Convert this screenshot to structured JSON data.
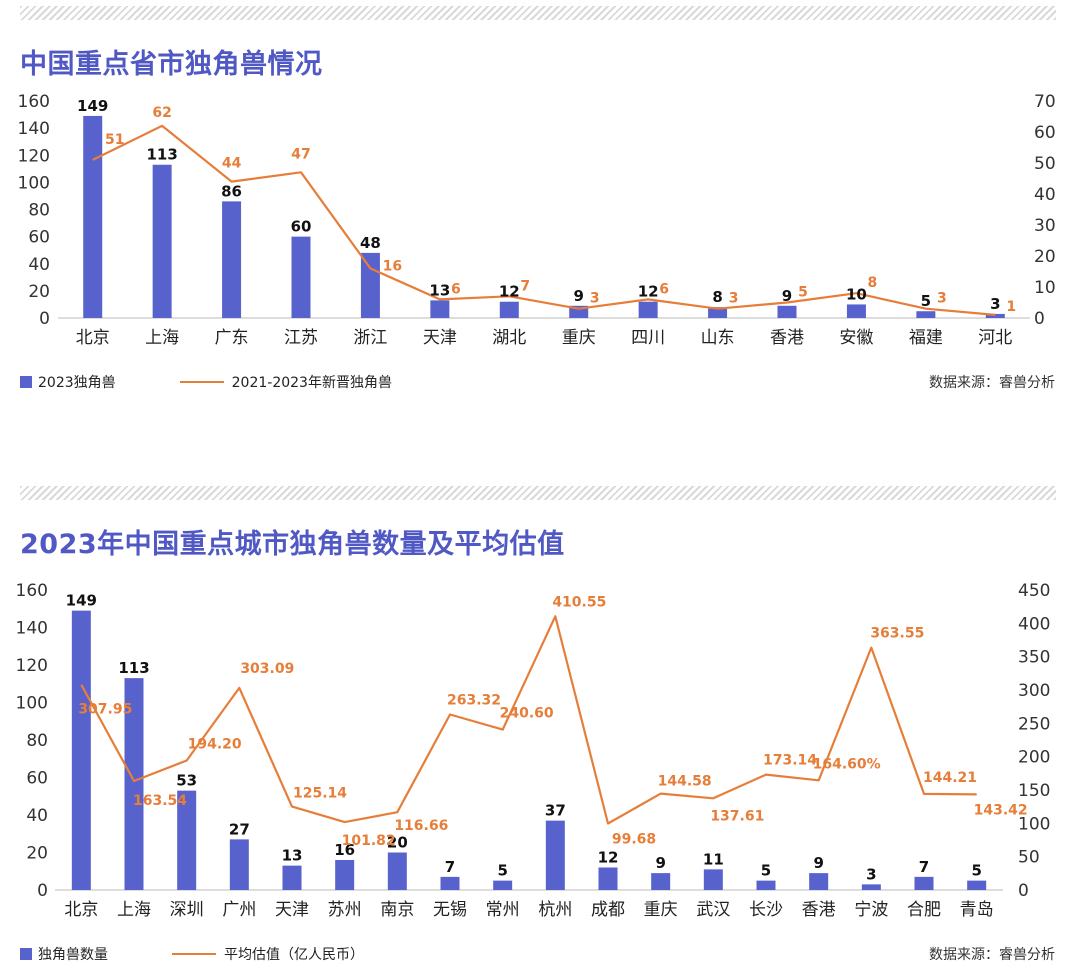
{
  "chart_data": [
    {
      "type": "bar",
      "title": "中国重点省市独角兽情况",
      "categories": [
        "北京",
        "上海",
        "广东",
        "江苏",
        "浙江",
        "天津",
        "湖北",
        "重庆",
        "四川",
        "山东",
        "香港",
        "安徽",
        "福建",
        "河北"
      ],
      "series": [
        {
          "name": "2023独角兽",
          "type": "bar",
          "axis": "left",
          "color": "#5862cc",
          "values": [
            149,
            113,
            86,
            60,
            48,
            13,
            12,
            9,
            12,
            8,
            9,
            10,
            5,
            3
          ],
          "labels": [
            "149",
            "113",
            "86",
            "60",
            "48",
            "13",
            "12",
            "9",
            "12",
            "8",
            "9",
            "10",
            "5",
            "3"
          ]
        },
        {
          "name": "2021-2023年新晋独角兽",
          "type": "line",
          "axis": "right",
          "color": "#e67e3a",
          "values": [
            51,
            62,
            44,
            47,
            16,
            6,
            7,
            3,
            6,
            3,
            5,
            8,
            3,
            1
          ],
          "labels": [
            "51",
            "62",
            "44",
            "47",
            "16",
            "6",
            "7",
            "3",
            "6",
            "3",
            "5",
            "8",
            "3",
            "1"
          ]
        }
      ],
      "ylim": [
        0,
        160
      ],
      "y_ticks": [
        "0",
        "20",
        "40",
        "60",
        "80",
        "100",
        "120",
        "140",
        "160"
      ],
      "y2lim": [
        0,
        70
      ],
      "y2_ticks": [
        "0",
        "10",
        "20",
        "30",
        "40",
        "50",
        "60",
        "70"
      ],
      "legend": "bottom-left",
      "grid": false,
      "source": "数据来源：睿兽分析"
    },
    {
      "type": "bar",
      "title": "2023年中国重点城市独角兽数量及平均估值",
      "categories": [
        "北京",
        "上海",
        "深圳",
        "广州",
        "天津",
        "苏州",
        "南京",
        "无锡",
        "常州",
        "杭州",
        "成都",
        "重庆",
        "武汉",
        "长沙",
        "香港",
        "宁波",
        "合肥",
        "青岛"
      ],
      "series": [
        {
          "name": "独角兽数量",
          "type": "bar",
          "axis": "left",
          "color": "#5862cc",
          "values": [
            149,
            113,
            53,
            27,
            13,
            16,
            20,
            7,
            5,
            37,
            12,
            9,
            11,
            5,
            9,
            3,
            7,
            5
          ],
          "labels": [
            "149",
            "113",
            "53",
            "27",
            "13",
            "16",
            "20",
            "7",
            "5",
            "37",
            "12",
            "9",
            "11",
            "5",
            "9",
            "3",
            "7",
            "5"
          ]
        },
        {
          "name": "平均估值（亿人民币）",
          "type": "line",
          "axis": "right",
          "color": "#e67e3a",
          "values": [
            307.95,
            163.54,
            194.2,
            303.09,
            125.14,
            101.82,
            116.66,
            263.32,
            240.6,
            410.55,
            99.68,
            144.58,
            137.61,
            173.14,
            164.6,
            363.55,
            144.21,
            143.42
          ],
          "labels": [
            "307.95",
            "163.54",
            "194.20",
            "303.09",
            "125.14",
            "101.82",
            "116.66",
            "263.32",
            "240.60",
            "410.55",
            "99.68",
            "144.58",
            "137.61",
            "173.14",
            "164.60%",
            "363.55",
            "144.21",
            "143.42"
          ]
        }
      ],
      "ylim": [
        0,
        160
      ],
      "y_ticks": [
        "0",
        "20",
        "40",
        "60",
        "80",
        "100",
        "120",
        "140",
        "160"
      ],
      "y2lim": [
        0,
        450
      ],
      "y2_ticks": [
        "0",
        "50",
        "100",
        "150",
        "200",
        "250",
        "300",
        "350",
        "400",
        "450"
      ],
      "legend": "bottom-left",
      "grid": false,
      "source": "数据来源：睿兽分析"
    }
  ]
}
